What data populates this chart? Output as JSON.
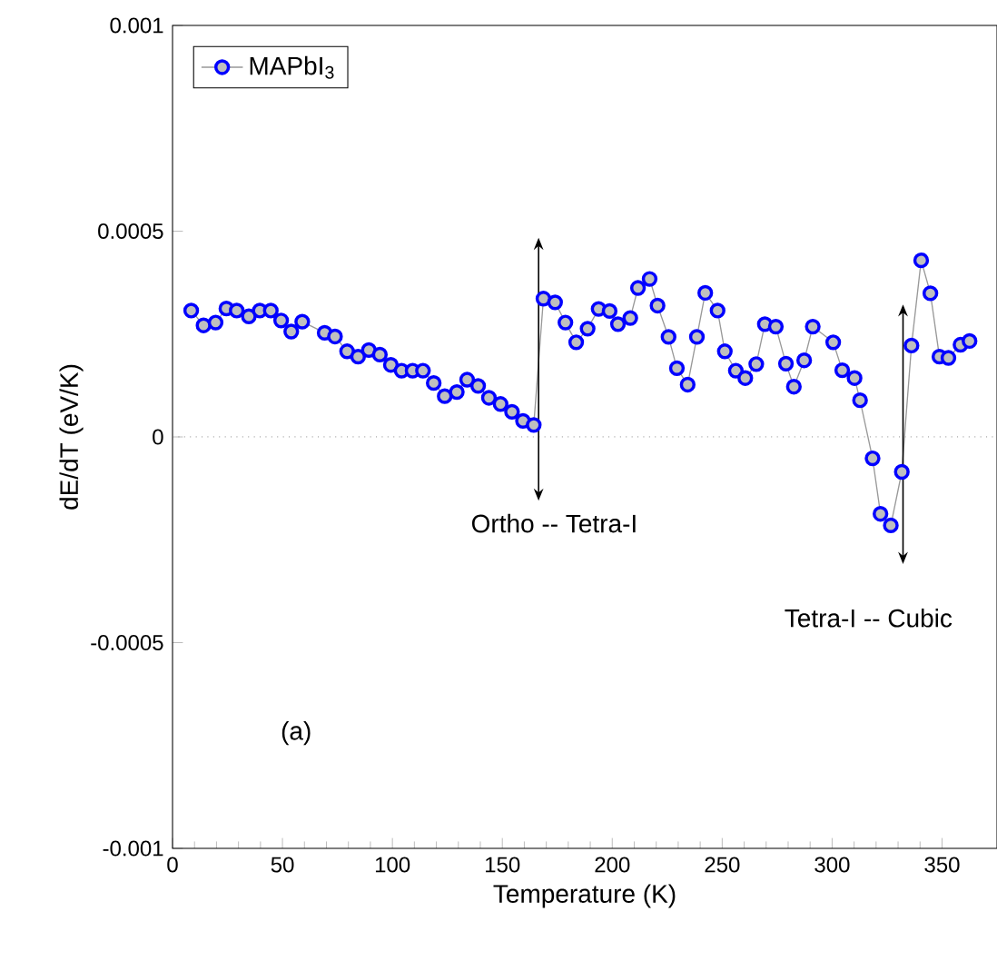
{
  "chart_data": {
    "type": "line",
    "xlabel": "Temperature (K)",
    "ylabel": "dE/dT  (eV/K)",
    "xlim": [
      0,
      375
    ],
    "ylim": [
      -0.001,
      0.001
    ],
    "xticks": [
      0,
      50,
      100,
      150,
      200,
      250,
      300,
      350
    ],
    "yticks": [
      -0.001,
      -0.0005,
      0,
      0.0005,
      0.001
    ],
    "legend": "top left",
    "marker": "circle",
    "line_style": "solid",
    "x": [
      8.5,
      14.1,
      19.6,
      24.5,
      29.2,
      34.7,
      39.7,
      44.7,
      49.4,
      54.0,
      59.0,
      69.2,
      73.9,
      79.4,
      84.4,
      89.3,
      94.3,
      99.3,
      104.2,
      109.2,
      113.9,
      118.8,
      123.8,
      129.3,
      134.0,
      139.0,
      143.9,
      149.2,
      154.4,
      159.4,
      164.3,
      168.7,
      174.0,
      178.7,
      183.6,
      188.8,
      193.8,
      198.8,
      202.6,
      208.2,
      211.7,
      217.0,
      220.6,
      225.6,
      229.4,
      234.3,
      238.5,
      242.3,
      247.9,
      251.2,
      256.2,
      260.5,
      265.5,
      269.4,
      274.4,
      279.0,
      282.6,
      287.3,
      291.2,
      300.5,
      304.6,
      310.2,
      312.7,
      318.4,
      322.0,
      326.7,
      331.7,
      336.1,
      340.5,
      344.7,
      348.8,
      352.9,
      358.4,
      362.5
    ],
    "series": [
      {
        "name": "MAPbI$_{3}$",
        "color": "#0000ff",
        "values": [
          0.000307,
          0.000271,
          0.000278,
          0.000312,
          0.000307,
          0.000293,
          0.000307,
          0.000307,
          0.000283,
          0.000256,
          0.00028,
          0.000253,
          0.000244,
          0.000208,
          0.000195,
          0.000211,
          0.0002,
          0.000175,
          0.000161,
          0.000161,
          0.000161,
          0.000131,
          9.9e-05,
          0.000109,
          0.000139,
          0.000124,
          9.5e-05,
          8e-05,
          6.1e-05,
          3.9e-05,
          2.9e-05,
          0.000336,
          0.000327,
          0.000278,
          0.00023,
          0.000263,
          0.000311,
          0.000306,
          0.000274,
          0.000289,
          0.000362,
          0.000384,
          0.000319,
          0.000243,
          0.000167,
          0.000127,
          0.000243,
          0.00035,
          0.000307,
          0.000208,
          0.000161,
          0.000143,
          0.000177,
          0.000274,
          0.000268,
          0.000178,
          0.000122,
          0.000186,
          0.000268,
          0.00023,
          0.000162,
          0.000143,
          8.9e-05,
          -5.2e-05,
          -0.000187,
          -0.000215,
          -8.5e-05,
          0.000222,
          0.000429,
          0.000349,
          0.000195,
          0.000192,
          0.000224,
          0.000233
        ]
      }
    ],
    "ref_lines": [
      {
        "axis": "y",
        "value": 0,
        "color": "#808080",
        "line_style": "dotted"
      }
    ],
    "annotations": [
      "Ortho -- Tetra-I",
      "Tetra-I -- Cubic",
      "(a)"
    ]
  }
}
